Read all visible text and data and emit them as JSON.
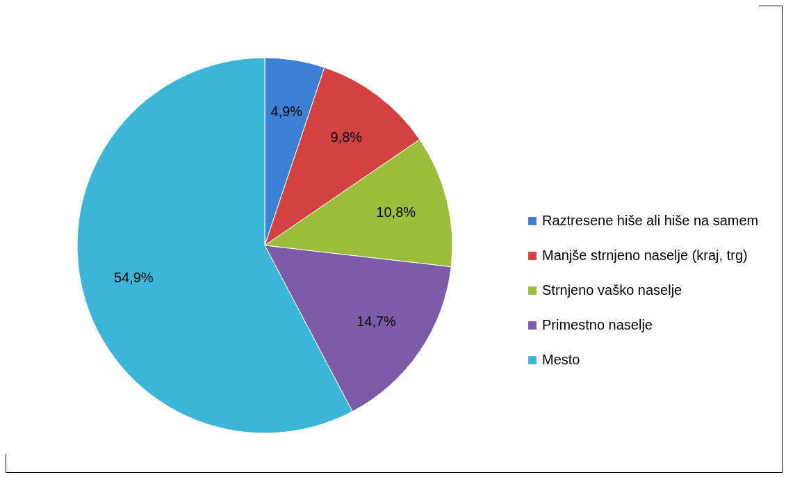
{
  "chart_data": {
    "type": "pie",
    "categories": [
      "Raztresene hiše ali hiše na samem",
      "Manjše strnjeno naselje (kraj, trg)",
      "Strnjeno vaško naselje",
      "Primestno naselje",
      "Mesto"
    ],
    "values": [
      4.9,
      9.8,
      10.8,
      14.7,
      54.9
    ],
    "value_labels": [
      "4,9%",
      "9,8%",
      "10,8%",
      "14,7%",
      "54,9%"
    ],
    "colors": [
      "#3d7fd3",
      "#d24240",
      "#9bbd3a",
      "#7d5ba8",
      "#3ab6d8"
    ],
    "legend": "right"
  }
}
